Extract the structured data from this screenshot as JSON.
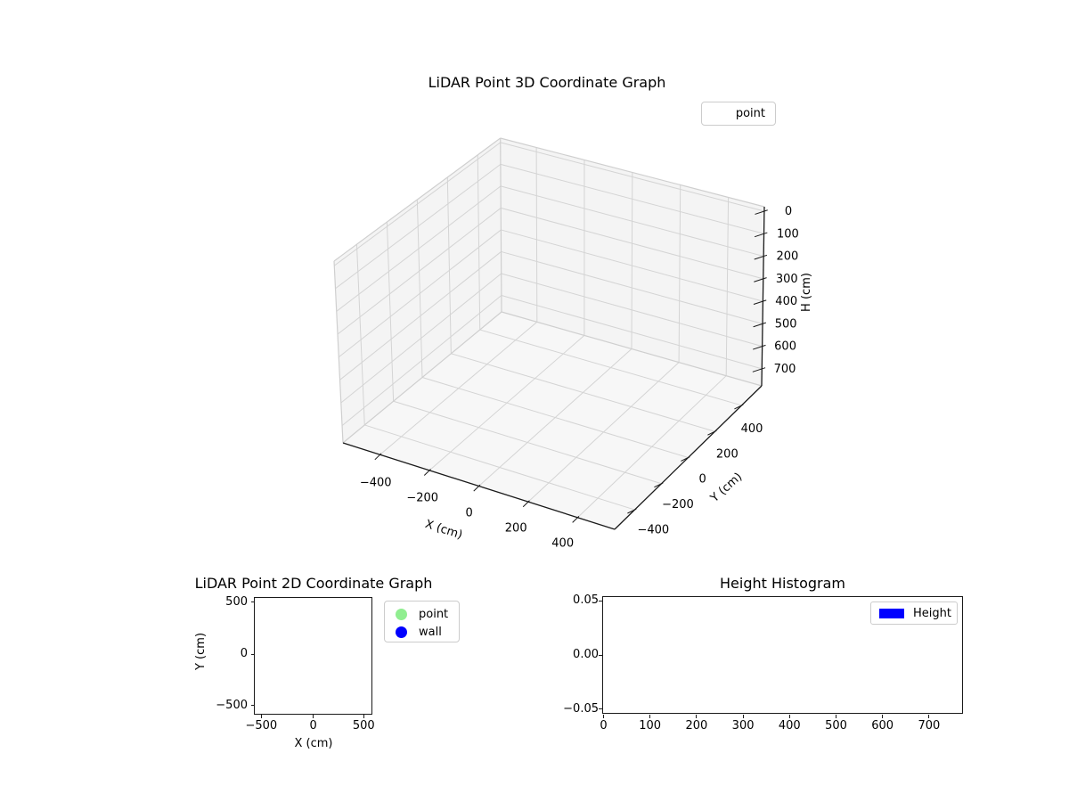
{
  "chart_data": [
    {
      "id": "lidar-3d",
      "type": "scatter3d",
      "title": "LiDAR Point 3D Coordinate Graph",
      "xlabel": "X (cm)",
      "ylabel": "Y (cm)",
      "zlabel": "H (cm)",
      "xticks": [
        -400,
        -200,
        0,
        200,
        400
      ],
      "yticks": [
        -400,
        -200,
        0,
        200,
        400
      ],
      "zticks": [
        0,
        100,
        200,
        300,
        400,
        500,
        600,
        700
      ],
      "z_axis_direction": "0 at top, 700 at bottom (inverted)",
      "xlim": [
        -500,
        500
      ],
      "ylim": [
        -500,
        500
      ],
      "zlim": [
        0,
        700
      ],
      "grid": true,
      "legend": [
        {
          "label": "point",
          "handle": "blank"
        }
      ],
      "legend_position": "upper right, outside axes",
      "series": [
        {
          "name": "point",
          "x": [],
          "y": [],
          "h": []
        }
      ]
    },
    {
      "id": "lidar-2d",
      "type": "scatter",
      "title": "LiDAR Point 2D Coordinate Graph",
      "xlabel": "X (cm)",
      "ylabel": "Y (cm)",
      "xticks": [
        -500,
        0,
        500
      ],
      "yticks": [
        500,
        0,
        -500
      ],
      "xlim": [
        -570,
        570
      ],
      "ylim": [
        -570,
        570
      ],
      "grid": false,
      "legend": [
        {
          "label": "point",
          "color": "#90ee90",
          "marker": "circle"
        },
        {
          "label": "wall",
          "color": "#0000ff",
          "marker": "circle"
        }
      ],
      "legend_position": "upper right, outside axes",
      "series": [
        {
          "name": "point",
          "points": []
        },
        {
          "name": "wall",
          "points": []
        }
      ]
    },
    {
      "id": "height-histogram",
      "type": "histogram",
      "title": "Height Histogram",
      "xlabel": "",
      "ylabel": "",
      "xticks": [
        0,
        100,
        200,
        300,
        400,
        500,
        600,
        700
      ],
      "yticks": [
        0.05,
        0.0,
        -0.05
      ],
      "ytick_labels": [
        "0.05",
        "0.00",
        "−0.05"
      ],
      "xlim": [
        0,
        773
      ],
      "ylim": [
        -0.055,
        0.055
      ],
      "grid": false,
      "legend": [
        {
          "label": "Height",
          "color": "#0000ff",
          "marker": "rect"
        }
      ],
      "legend_position": "upper right, inside axes",
      "values": []
    }
  ],
  "colors": {
    "point_marker": "#90ee90",
    "wall_marker": "#0000ff",
    "height_patch": "#0000ff",
    "background": "#ffffff"
  }
}
